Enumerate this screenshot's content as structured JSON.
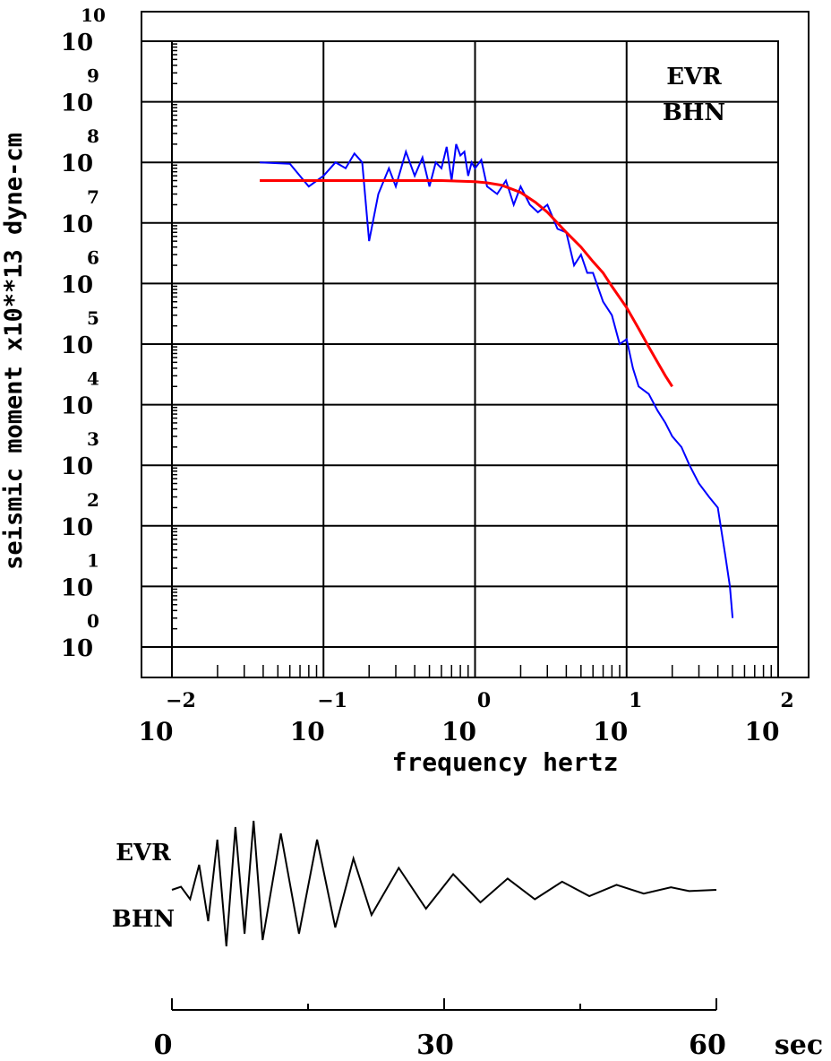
{
  "chart_data": [
    {
      "type": "line",
      "ylabel": "seismic moment x10**13 dyne-cm",
      "xlabel": "frequency  hertz",
      "x_scale": "log",
      "y_scale": "log",
      "xlim": [
        0.01,
        100
      ],
      "ylim": [
        1,
        10000000000.0
      ],
      "x_ticks": [
        {
          "base": "10",
          "exp": "−2"
        },
        {
          "base": "10",
          "exp": "−1"
        },
        {
          "base": "10",
          "exp": "0"
        },
        {
          "base": "10",
          "exp": "1"
        },
        {
          "base": "10",
          "exp": "2"
        }
      ],
      "y_ticks": [
        {
          "base": "10",
          "exp": "0"
        },
        {
          "base": "10",
          "exp": "1"
        },
        {
          "base": "10",
          "exp": "2"
        },
        {
          "base": "10",
          "exp": "3"
        },
        {
          "base": "10",
          "exp": "4"
        },
        {
          "base": "10",
          "exp": "5"
        },
        {
          "base": "10",
          "exp": "6"
        },
        {
          "base": "10",
          "exp": "7"
        },
        {
          "base": "10",
          "exp": "8"
        },
        {
          "base": "10",
          "exp": "9"
        },
        {
          "base": "10",
          "exp": "10"
        }
      ],
      "grid": true,
      "legend": {
        "station": "EVR",
        "channel": "BHN"
      },
      "series": [
        {
          "color": "#0000ff",
          "x": [
            0.038,
            0.06,
            0.08,
            0.1,
            0.12,
            0.14,
            0.16,
            0.18,
            0.2,
            0.23,
            0.27,
            0.3,
            0.35,
            0.4,
            0.45,
            0.5,
            0.55,
            0.6,
            0.65,
            0.7,
            0.75,
            0.8,
            0.85,
            0.9,
            0.95,
            1.0,
            1.1,
            1.2,
            1.4,
            1.6,
            1.8,
            2.0,
            2.3,
            2.6,
            3.0,
            3.5,
            4.0,
            4.5,
            5.0,
            5.5,
            6.0,
            7.0,
            8.0,
            9.0,
            10,
            11,
            12,
            14,
            16,
            18,
            20,
            23,
            26,
            30,
            35,
            40,
            45,
            48,
            50
          ],
          "y": [
            100000000.0,
            95000000.0,
            40000000.0,
            60000000.0,
            100000000.0,
            80000000.0,
            140000000.0,
            100000000.0,
            5000000.0,
            30000000.0,
            80000000.0,
            40000000.0,
            150000000.0,
            60000000.0,
            120000000.0,
            40000000.0,
            100000000.0,
            80000000.0,
            180000000.0,
            50000000.0,
            200000000.0,
            130000000.0,
            150000000.0,
            60000000.0,
            100000000.0,
            80000000.0,
            110000000.0,
            40000000.0,
            30000000.0,
            50000000.0,
            20000000.0,
            40000000.0,
            20000000.0,
            15000000.0,
            20000000.0,
            8000000.0,
            7000000.0,
            2000000.0,
            3000000.0,
            1500000.0,
            1500000.0,
            500000.0,
            300000.0,
            100000.0,
            120000.0,
            40000.0,
            20000.0,
            15000.0,
            8000.0,
            5000.0,
            3000.0,
            2000.0,
            1000.0,
            500,
            300,
            200,
            30,
            10,
            3
          ]
        },
        {
          "color": "#ff0000",
          "x": [
            0.038,
            0.1,
            0.3,
            0.6,
            1.0,
            1.2,
            1.5,
            2.0,
            2.5,
            3.0,
            4.0,
            5.0,
            6.0,
            7.0,
            8.0,
            10,
            12,
            14,
            16,
            18,
            20
          ],
          "y": [
            50000000.0,
            50000000.0,
            50000000.0,
            50000000.0,
            48000000.0,
            46000000.0,
            42000000.0,
            32000000.0,
            22000000.0,
            15000000.0,
            7000000.0,
            4000000.0,
            2300000.0,
            1500000.0,
            900000.0,
            400000.0,
            180000.0,
            90000.0,
            50000.0,
            30000.0,
            20000.0
          ]
        }
      ]
    },
    {
      "type": "line",
      "legend": {
        "station": "EVR",
        "channel": "BHN"
      },
      "x_ticks": [
        "0",
        "30",
        "60"
      ],
      "x_unit": "sec",
      "xlim": [
        0,
        60
      ],
      "series": [
        {
          "color": "#000000",
          "x": [
            0,
            1,
            2,
            3,
            4,
            5,
            6,
            7,
            8,
            9,
            10,
            12,
            14,
            16,
            18,
            20,
            22,
            25,
            28,
            31,
            34,
            37,
            40,
            43,
            46,
            49,
            52,
            55,
            57,
            60
          ],
          "y": [
            0,
            0.05,
            -0.15,
            0.4,
            -0.5,
            0.8,
            -0.9,
            1.0,
            -0.7,
            1.1,
            -0.8,
            0.9,
            -0.7,
            0.8,
            -0.6,
            0.5,
            -0.4,
            0.35,
            -0.3,
            0.25,
            -0.2,
            0.18,
            -0.15,
            0.13,
            -0.1,
            0.08,
            -0.06,
            0.04,
            -0.02,
            0
          ]
        }
      ]
    }
  ]
}
